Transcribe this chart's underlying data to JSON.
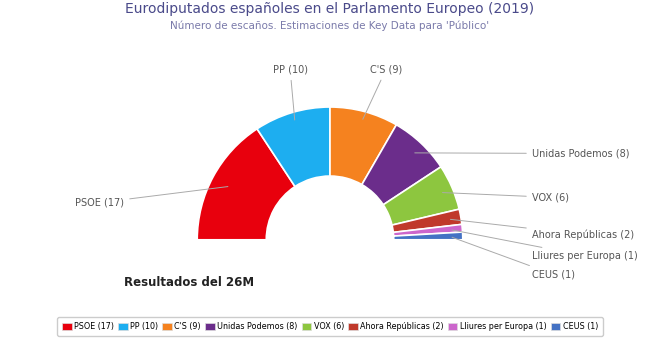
{
  "title": "Eurodiputados españoles en el Parlamento Europeo (2019)",
  "subtitle": "Número de escaños. Estimaciones de Key Data para 'Público'",
  "annotation": "Resultados del 26M",
  "parties": [
    {
      "name": "PSOE",
      "seats": 17,
      "color": "#e8000d"
    },
    {
      "name": "PP",
      "seats": 10,
      "color": "#1daef0"
    },
    {
      "name": "C'S",
      "seats": 9,
      "color": "#f5821f"
    },
    {
      "name": "Unidas Podemos",
      "seats": 8,
      "color": "#6b2d8b"
    },
    {
      "name": "VOX",
      "seats": 6,
      "color": "#8dc63f"
    },
    {
      "name": "Ahora Repúblicas",
      "seats": 2,
      "color": "#c0392b"
    },
    {
      "name": "Lliures per Europa",
      "seats": 1,
      "color": "#cc66cc"
    },
    {
      "name": "CEUS",
      "seats": 1,
      "color": "#4472c4"
    }
  ],
  "legend_labels": [
    "PSOE (17)",
    "PP (10)",
    "C'S (9)",
    "Unidas Podemos (8)",
    "VOX (6)",
    "Ahora Repúblicas (2)",
    "Lliures per Europa (1)",
    "CEUS (1)"
  ],
  "legend_colors": [
    "#e8000d",
    "#1daef0",
    "#f5821f",
    "#6b2d8b",
    "#8dc63f",
    "#c0392b",
    "#cc66cc",
    "#4472c4"
  ],
  "bg_color": "#ffffff",
  "title_color": "#4a4a8a",
  "subtitle_color": "#7a7aaa",
  "annotation_color": "#222222",
  "label_color": "#555555",
  "outer_r": 1.0,
  "inner_r": 0.48
}
